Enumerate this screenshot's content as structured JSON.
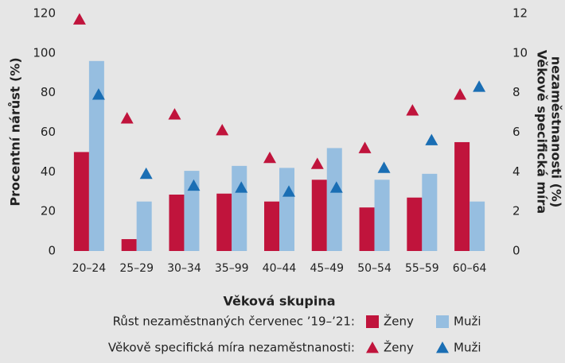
{
  "chart_data": {
    "type": "bar",
    "categories": [
      "20–24",
      "25–29",
      "30–34",
      "35–99",
      "40–44",
      "45–49",
      "50–54",
      "55–59",
      "60–64"
    ],
    "series": [
      {
        "name": "Ženy",
        "color": "#c0143c",
        "mark": "bar",
        "values": [
          50,
          6,
          28.5,
          29,
          25,
          36,
          22,
          27,
          55
        ]
      },
      {
        "name": "Muži",
        "color": "#96bee0",
        "mark": "bar",
        "values": [
          96,
          25,
          40.5,
          43,
          42,
          52,
          36,
          39,
          25
        ]
      },
      {
        "name": "Ženy",
        "color": "#c0143c",
        "mark": "triangle",
        "axis": "y2",
        "values": [
          11.7,
          6.7,
          6.9,
          6.1,
          4.7,
          4.4,
          5.2,
          7.1,
          7.9
        ]
      },
      {
        "name": "Muži",
        "color": "#1a6eb4",
        "mark": "triangle",
        "axis": "y2",
        "values": [
          7.9,
          3.9,
          3.3,
          3.2,
          3.0,
          3.2,
          4.2,
          5.6,
          8.3
        ]
      }
    ],
    "ylabel": "Procentní nárůst (%)",
    "y2label": [
      "Věkově specifická míra",
      "nezaměstnanosti (%)"
    ],
    "xlabel": "Věková skupina",
    "ylim": [
      0,
      120
    ],
    "yticks": [
      0,
      20,
      40,
      60,
      80,
      100,
      120
    ],
    "y2lim": [
      0,
      12
    ],
    "y2ticks": [
      0,
      2,
      4,
      6,
      8,
      10,
      12
    ],
    "legend_titles": [
      "Růst nezaměstnaných červenec ’19–’21:",
      "Věkově specifická míra nezaměstnanosti:"
    ],
    "grid": false
  }
}
